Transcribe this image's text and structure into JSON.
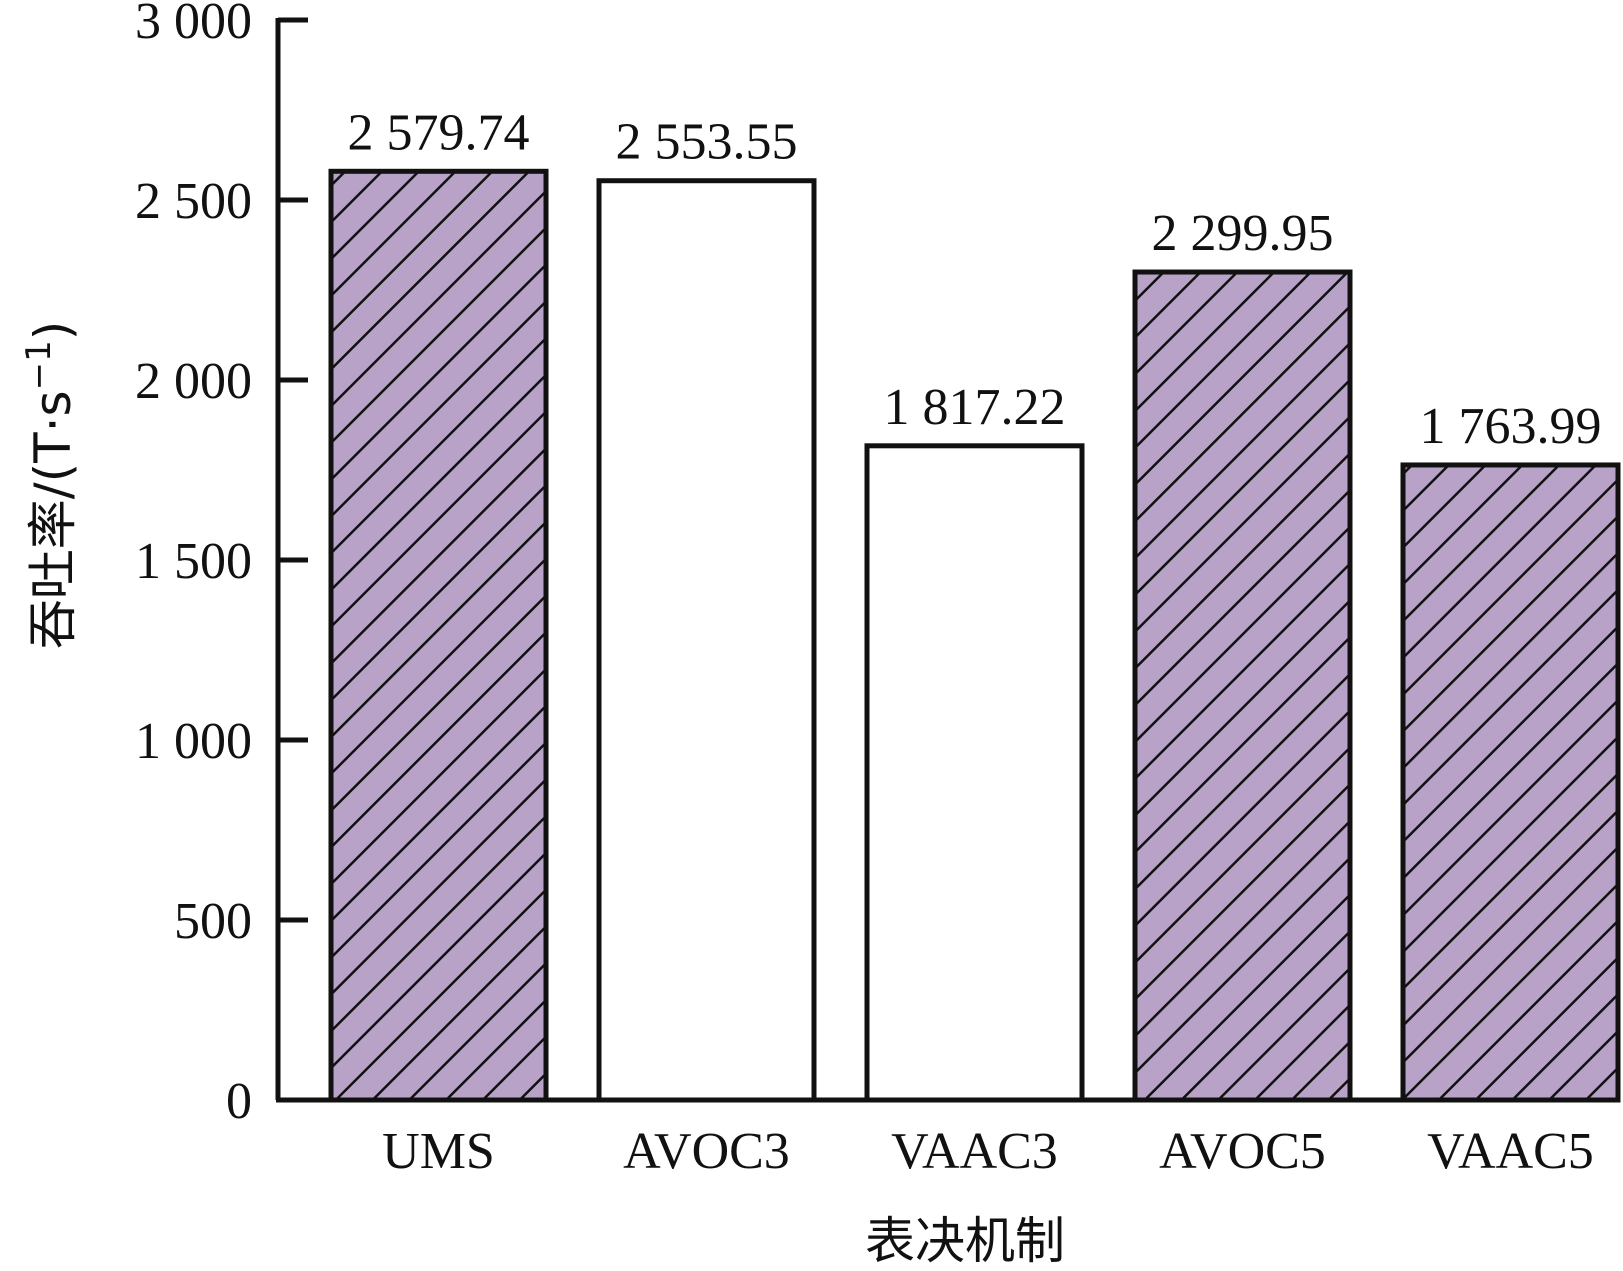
{
  "chart_data": {
    "type": "bar",
    "categories": [
      "UMS",
      "AVOC3",
      "VAAC3",
      "AVOC5",
      "VAAC5"
    ],
    "values": [
      2579.74,
      2553.55,
      1817.22,
      2299.95,
      1763.99
    ],
    "value_labels": [
      "2 579.74",
      "2 553.55",
      "1 817.22",
      "2 299.95",
      "1 763.99"
    ],
    "fill_styles": [
      "hatched",
      "plain",
      "plain",
      "hatched",
      "hatched"
    ],
    "colors": {
      "hatched_fill": "#b8a2c8",
      "hatch_line": "#111111",
      "plain_fill": "#ffffff",
      "outline": "#111111"
    },
    "title": "",
    "xlabel": "表决机制",
    "ylabel_main": "吞吐率/(T·s",
    "ylabel_sup": "−1",
    "ylabel_end": ")",
    "ylim": [
      0,
      3000
    ],
    "yticks": [
      0,
      500,
      1000,
      1500,
      2000,
      2500,
      3000
    ],
    "ytick_labels": [
      "0",
      "500",
      "1 000",
      "1 500",
      "2 000",
      "2 500",
      "3 000"
    ],
    "grid": false,
    "legend": "none"
  }
}
